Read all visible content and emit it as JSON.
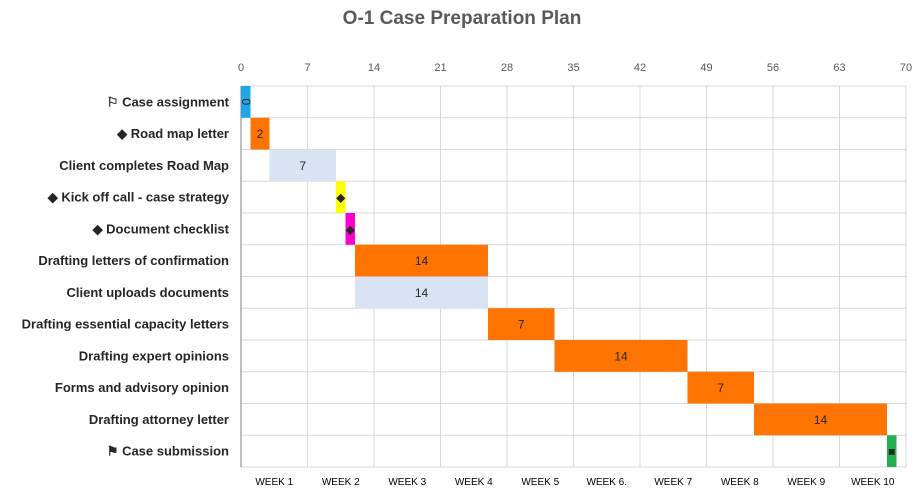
{
  "chart_data": {
    "type": "bar",
    "orientation": "horizontal-gantt",
    "title": "O-1 Case Preparation Plan",
    "xlim": [
      0,
      70
    ],
    "x_ticks": [
      "0",
      "7",
      "14",
      "21",
      "28",
      "35",
      "42",
      "49",
      "56",
      "63",
      "70"
    ],
    "week_labels": [
      "WEEK 1",
      "WEEK 2",
      "WEEK 3",
      "WEEK 4",
      "WEEK 5",
      "WEEK 6.",
      "WEEK 7",
      "WEEK 8",
      "WEEK 9",
      "WEEK 10"
    ],
    "grid": true,
    "tasks": [
      {
        "icon": "⚐",
        "label": "Case assignment",
        "start": 0,
        "duration": 1,
        "data_label": "0",
        "color": "#1ea6e6"
      },
      {
        "icon": "◆",
        "label": "Road map letter",
        "start": 1,
        "duration": 2,
        "data_label": "2",
        "color": "#ff7300"
      },
      {
        "icon": "",
        "label": "Client completes Road Map",
        "start": 3,
        "duration": 7,
        "data_label": "7",
        "color": "#d9e3f3"
      },
      {
        "icon": "◆",
        "label": "Kick off call  - case strategy",
        "start": 10,
        "duration": 1,
        "data_label": "◆",
        "color": "#ffff00"
      },
      {
        "icon": "◆",
        "label": "Document checklist",
        "start": 11,
        "duration": 1,
        "data_label": "◆",
        "color": "#ff00cc"
      },
      {
        "icon": "",
        "label": "Drafting letters of confirmation",
        "start": 12,
        "duration": 14,
        "data_label": "14",
        "color": "#ff7300"
      },
      {
        "icon": "",
        "label": "Client uploads documents",
        "start": 12,
        "duration": 14,
        "data_label": "14",
        "color": "#d9e3f3"
      },
      {
        "icon": "",
        "label": "Drafting essential capacity letters",
        "start": 26,
        "duration": 7,
        "data_label": "7",
        "color": "#ff7300"
      },
      {
        "icon": "",
        "label": "Drafting expert opinions",
        "start": 33,
        "duration": 14,
        "data_label": "14",
        "color": "#ff7300"
      },
      {
        "icon": "",
        "label": "Forms and advisory opinion",
        "start": 47,
        "duration": 7,
        "data_label": "7",
        "color": "#ff7300"
      },
      {
        "icon": "",
        "label": "Drafting attorney letter",
        "start": 54,
        "duration": 14,
        "data_label": "14",
        "color": "#ff7300"
      },
      {
        "icon": "⚑",
        "label": "Case submission",
        "start": 68,
        "duration": 1,
        "data_label": "■",
        "color": "#22b14c"
      }
    ]
  }
}
